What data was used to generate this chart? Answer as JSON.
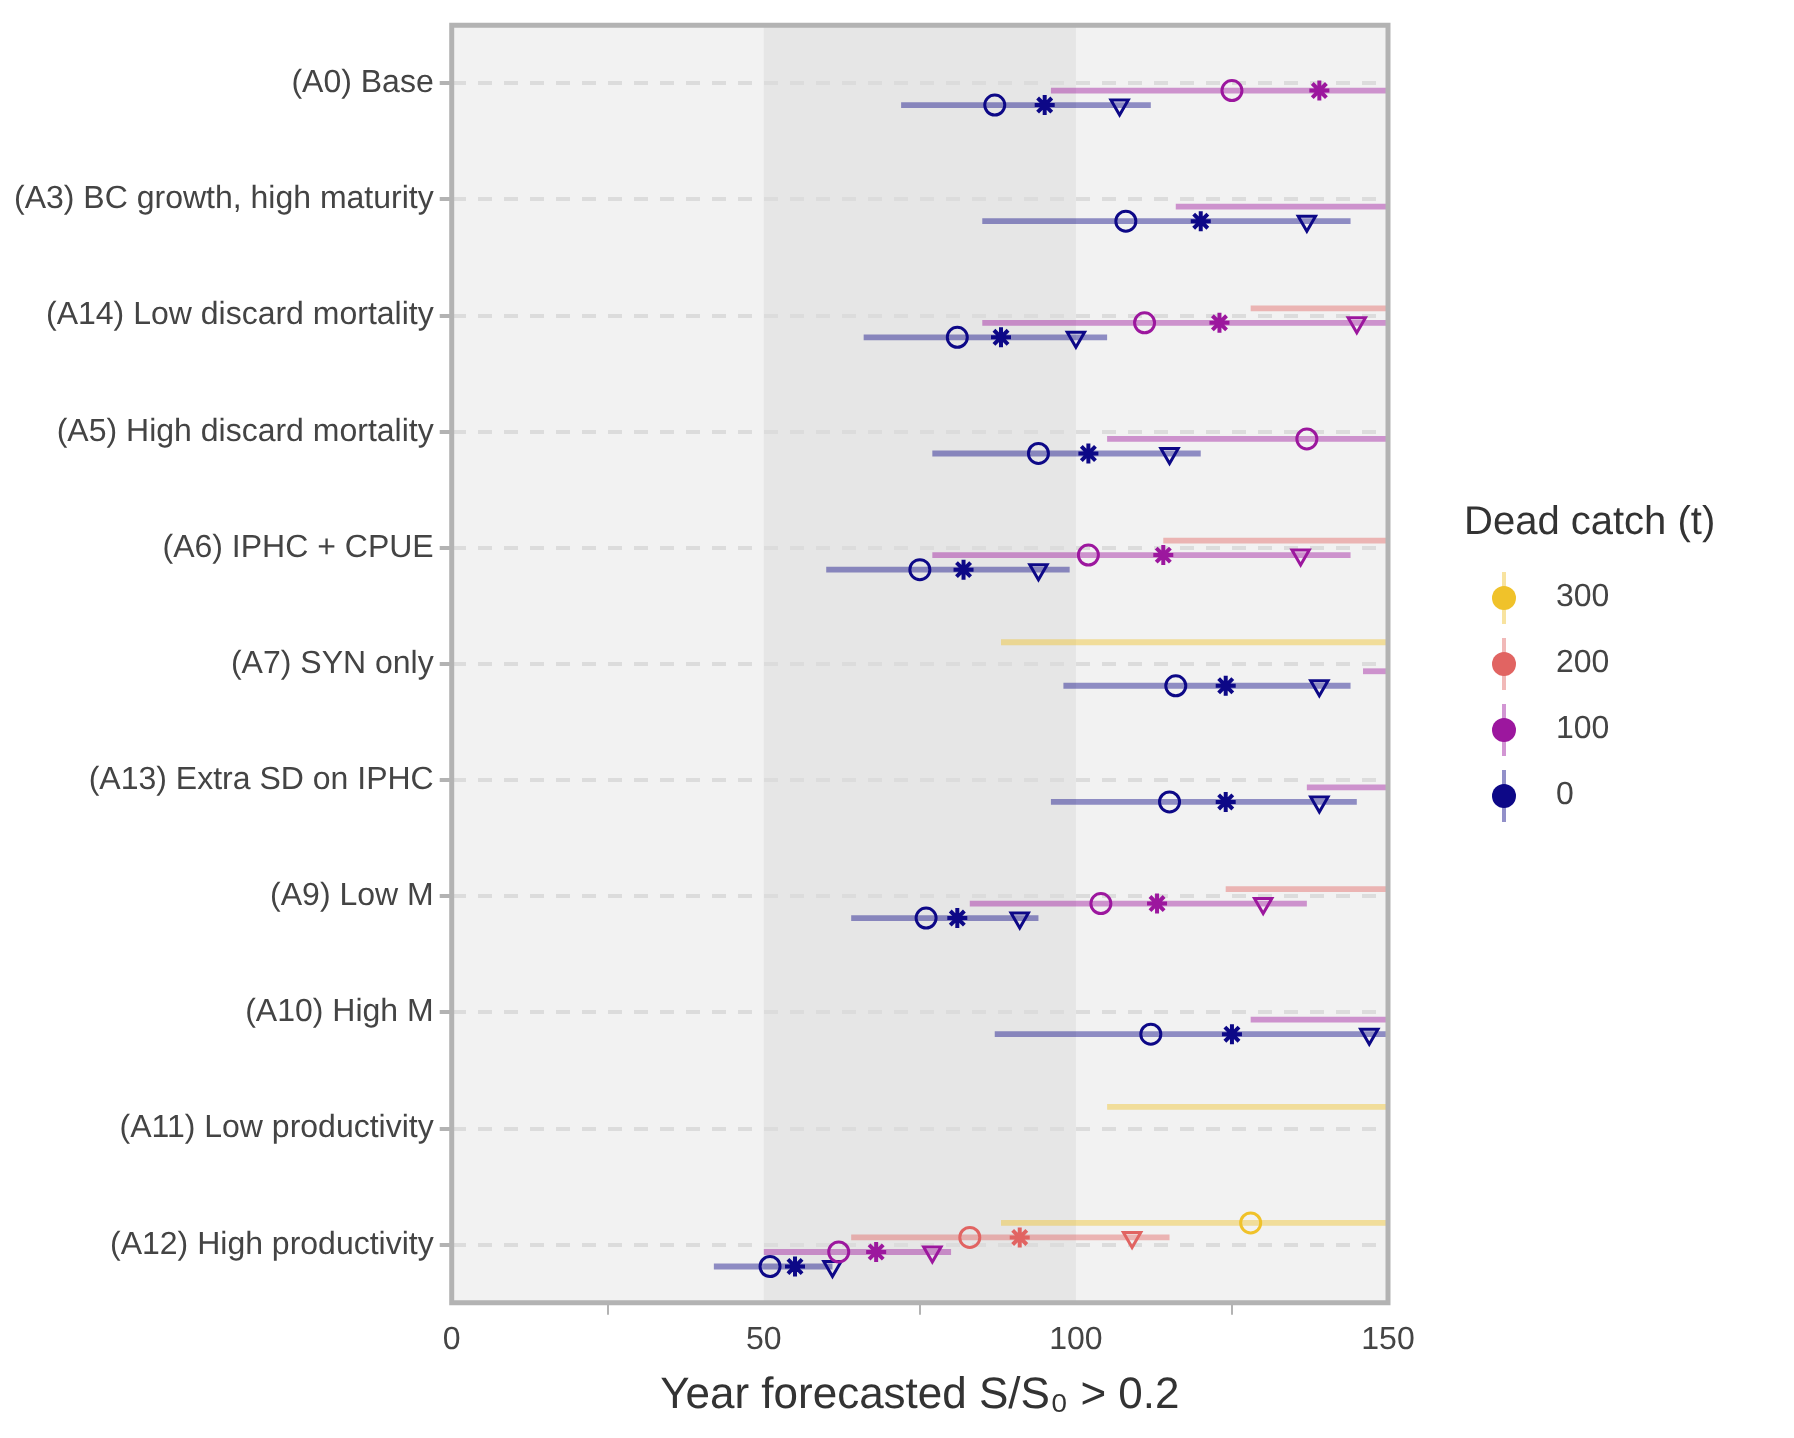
{
  "chart_data": {
    "type": "scatter",
    "orientation": "horizontal",
    "categories": [
      "(A0) Base",
      "(A3) BC growth, high maturity",
      "(A14) Low discard mortality",
      "(A5) High discard mortality",
      "(A6) IPHC + CPUE",
      "(A7) SYN only",
      "(A13) Extra SD on IPHC",
      "(A9) Low M",
      "(A10) High M",
      "(A11) Low productivity",
      "(A12) High productivity"
    ],
    "xlabel": "Year forecasted S/S₀ > 0.2",
    "legend_title": "Dead catch (t)",
    "legend": "right",
    "grid": "y",
    "xlim": [
      0,
      150
    ],
    "xticks": [
      0,
      50,
      100,
      150
    ],
    "bands": [
      {
        "axis": "x",
        "from": 50,
        "to": 100,
        "color": "#e6e6e6"
      }
    ],
    "series": [
      {
        "type": "bar",
        "name": "300",
        "color": "#f0c22a",
        "base": [
          null,
          null,
          null,
          null,
          null,
          88,
          null,
          null,
          null,
          105,
          88
        ],
        "values": [
          null,
          null,
          null,
          null,
          null,
          62,
          null,
          null,
          null,
          45,
          62
        ]
      },
      {
        "marker": "circle",
        "color": "#f0c22a",
        "values": [
          null,
          null,
          null,
          null,
          null,
          null,
          null,
          null,
          null,
          null,
          128
        ]
      },
      {
        "type": "bar",
        "name": "200",
        "color": "#e16462",
        "base": [
          null,
          null,
          128,
          null,
          114,
          null,
          null,
          124,
          null,
          null,
          64
        ],
        "values": [
          null,
          null,
          22,
          null,
          36,
          null,
          null,
          26,
          null,
          null,
          51
        ]
      },
      {
        "marker": "circle",
        "color": "#e16462",
        "values": [
          null,
          null,
          null,
          null,
          null,
          null,
          null,
          null,
          null,
          null,
          83
        ]
      },
      {
        "marker": "cross",
        "color": "#e16462",
        "values": [
          null,
          null,
          null,
          null,
          null,
          null,
          null,
          null,
          null,
          null,
          91
        ]
      },
      {
        "marker": "triangle",
        "color": "#e16462",
        "values": [
          null,
          null,
          null,
          null,
          null,
          null,
          null,
          null,
          null,
          null,
          109
        ]
      },
      {
        "type": "bar",
        "name": "100",
        "color": "#9c179e",
        "base": [
          96,
          116,
          85,
          105,
          77,
          146,
          137,
          83,
          128,
          null,
          50
        ],
        "values": [
          54,
          34,
          65,
          45,
          67,
          4,
          13,
          54,
          22,
          null,
          30
        ]
      },
      {
        "marker": "circle",
        "color": "#9c179e",
        "values": [
          125,
          null,
          111,
          137,
          102,
          null,
          null,
          104,
          null,
          null,
          62
        ]
      },
      {
        "marker": "cross",
        "color": "#9c179e",
        "values": [
          139,
          null,
          123,
          null,
          114,
          null,
          null,
          113,
          null,
          null,
          68
        ]
      },
      {
        "marker": "triangle",
        "color": "#9c179e",
        "values": [
          null,
          null,
          145,
          null,
          136,
          null,
          null,
          130,
          null,
          null,
          77
        ]
      },
      {
        "type": "bar",
        "name": "0",
        "color": "#0d0887",
        "base": [
          72,
          85,
          66,
          77,
          60,
          98,
          96,
          64,
          87,
          null,
          42
        ],
        "values": [
          40,
          59,
          39,
          43,
          39,
          46,
          49,
          30,
          63,
          null,
          19
        ]
      },
      {
        "marker": "circle",
        "color": "#0d0887",
        "values": [
          87,
          108,
          81,
          94,
          75,
          116,
          115,
          76,
          112,
          null,
          51
        ]
      },
      {
        "marker": "cross",
        "color": "#0d0887",
        "values": [
          95,
          120,
          88,
          102,
          82,
          124,
          124,
          81,
          125,
          null,
          55
        ]
      },
      {
        "marker": "triangle",
        "color": "#0d0887",
        "values": [
          107,
          137,
          100,
          115,
          94,
          139,
          139,
          91,
          147,
          null,
          61
        ]
      }
    ]
  }
}
